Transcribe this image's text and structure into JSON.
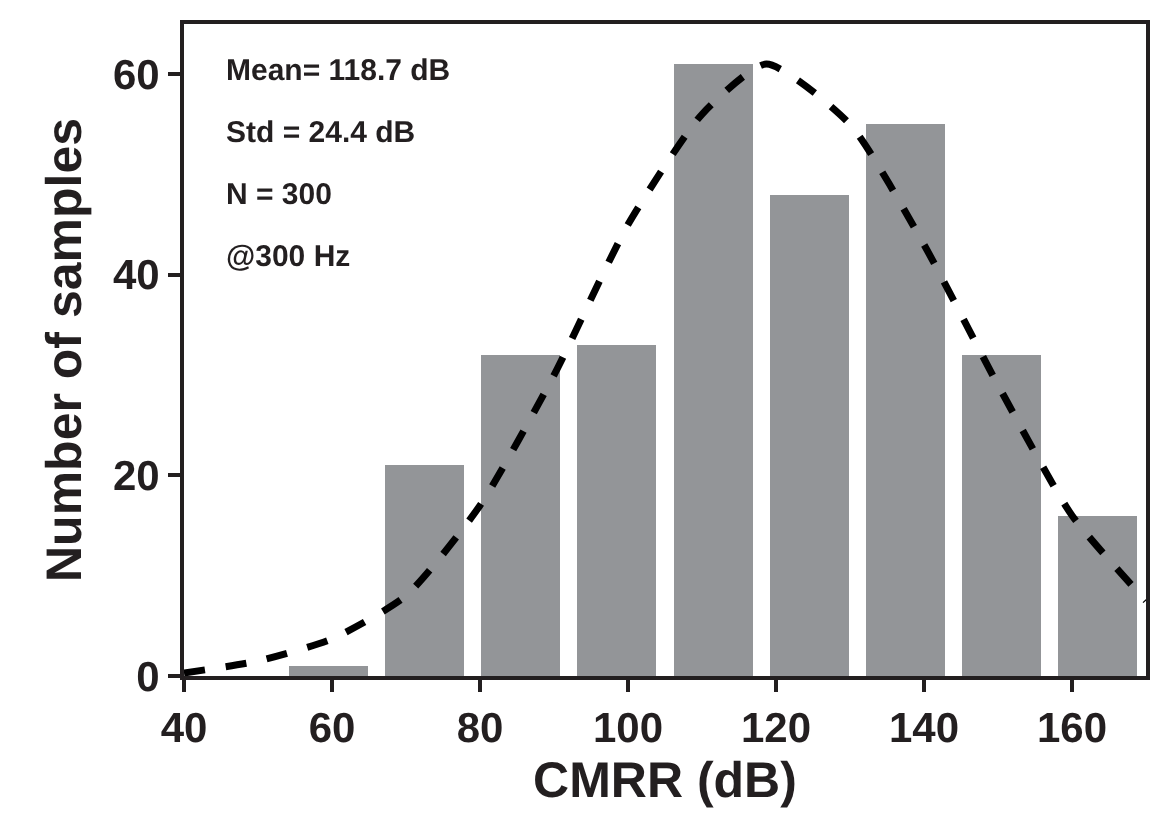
{
  "chart_data": {
    "type": "histogram",
    "xlabel": "CMRR (dB)",
    "ylabel": "Number of samples",
    "bins": [
      53,
      66,
      79,
      92,
      105,
      118,
      131,
      144,
      157,
      170
    ],
    "values": [
      1,
      21,
      32,
      33,
      61,
      48,
      55,
      32,
      16
    ],
    "color": "#939598",
    "series": [
      {
        "type": "line",
        "color": "#000000",
        "line_style": "dashed",
        "x": [
          40,
          50,
          60,
          70,
          80,
          90,
          100,
          110,
          118.7,
          130,
          140,
          150,
          160,
          170
        ],
        "values": [
          0.3,
          1.5,
          3.7,
          8,
          17,
          30,
          45,
          56,
          61,
          55,
          43,
          29,
          16,
          7.5
        ]
      }
    ],
    "xlim": [
      40,
      170
    ],
    "xticks": [
      40,
      60,
      80,
      100,
      120,
      140,
      160
    ],
    "ylim": [
      0,
      65
    ],
    "yticks": [
      0,
      20,
      40,
      60
    ],
    "grid": false,
    "marker": "none",
    "annotations": [
      "Mean= 118.7 dB",
      "Std = 24.4 dB",
      "N = 300",
      "@300 Hz"
    ]
  }
}
